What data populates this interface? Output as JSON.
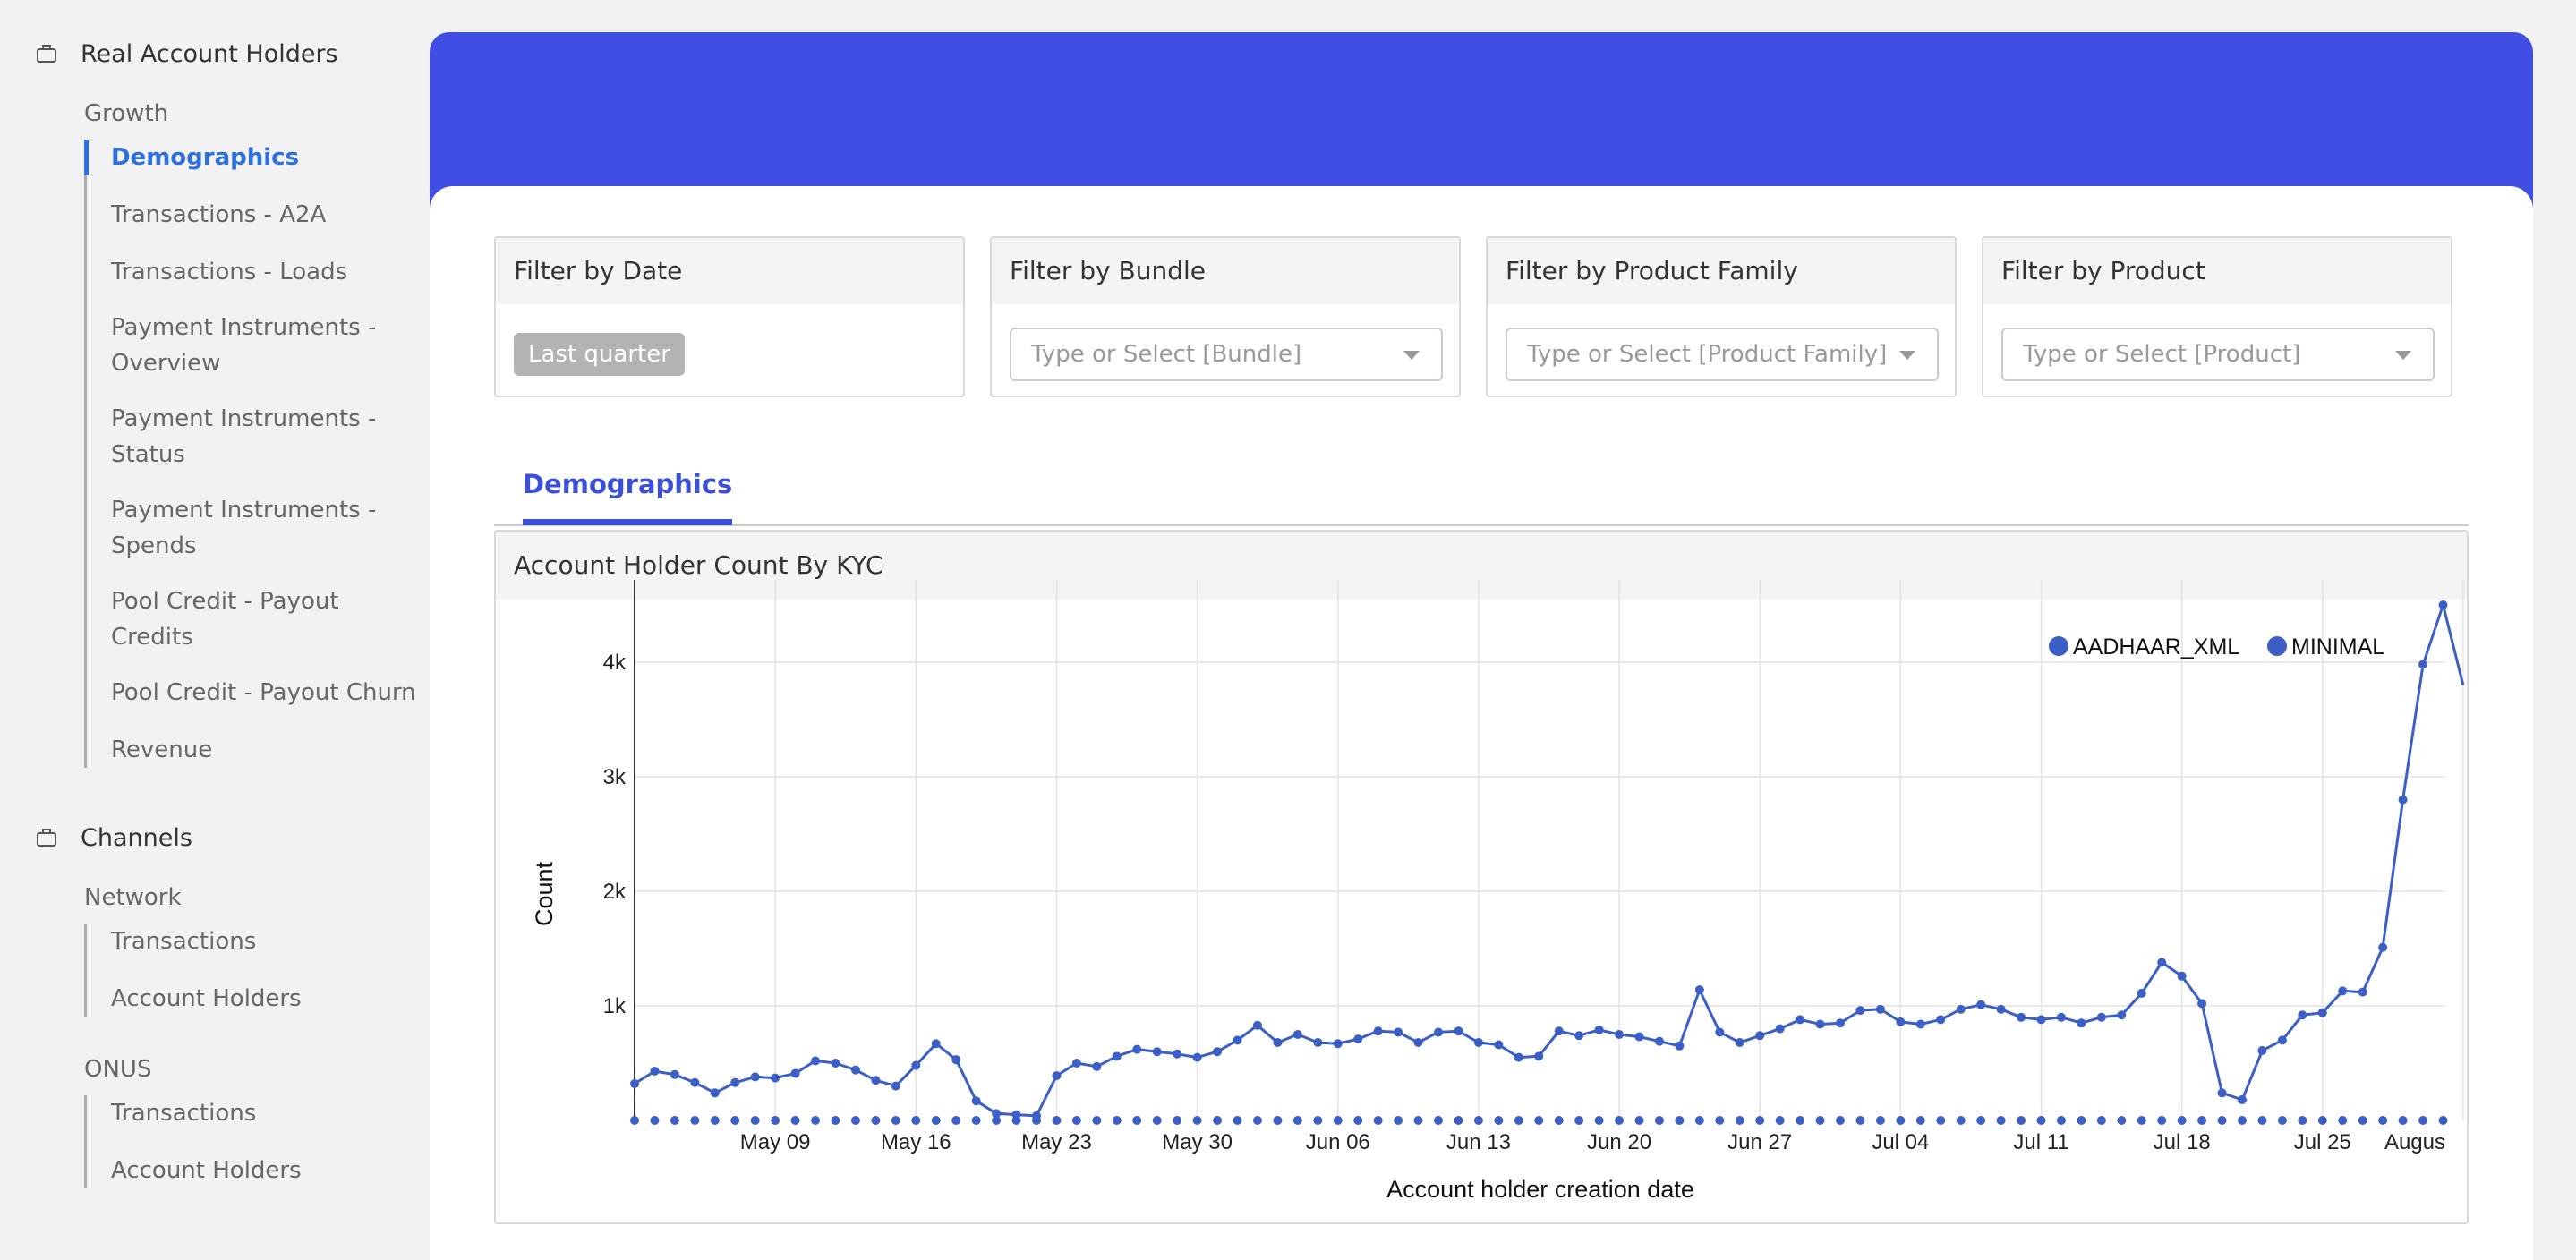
{
  "sidebar": {
    "section1": {
      "icon": "briefcase-icon",
      "title": "Real Account Holders",
      "subhead": "Growth",
      "items": [
        "Demographics",
        "Transactions - A2A",
        "Transactions - Loads",
        "Payment Instruments - Overview",
        "Payment Instruments - Status",
        "Payment Instruments - Spends",
        "Pool Credit - Payout Credits",
        "Pool Credit - Payout Churn",
        "Revenue"
      ],
      "active": "Demographics"
    },
    "section2": {
      "icon": "briefcase-icon",
      "title": "Channels",
      "groups": [
        {
          "subhead": "Network",
          "items": [
            "Transactions",
            "Account Holders"
          ]
        },
        {
          "subhead": "ONUS",
          "items": [
            "Transactions",
            "Account Holders"
          ]
        }
      ]
    }
  },
  "filters": {
    "date": {
      "title": "Filter by Date",
      "chip": "Last quarter"
    },
    "bundle": {
      "title": "Filter by Bundle",
      "placeholder": "Type or Select [Bundle]"
    },
    "family": {
      "title": "Filter by Product Family",
      "placeholder": "Type or Select [Product Family]"
    },
    "product": {
      "title": "Filter by Product",
      "placeholder": "Type or Select [Product]"
    }
  },
  "tabs": {
    "active": "Demographics"
  },
  "chart": {
    "title": "Account Holder Count By KYC"
  },
  "chart_data": {
    "type": "line",
    "xlabel": "Account holder creation date",
    "ylabel": "Count",
    "ylim": [
      0,
      4500
    ],
    "yticks": [
      1000,
      2000,
      3000,
      4000
    ],
    "ytick_labels": [
      "1k",
      "2k",
      "3k",
      "4k"
    ],
    "xtick_labels": [
      "May 09",
      "May 16",
      "May 23",
      "May 30",
      "Jun 06",
      "Jun 13",
      "Jun 20",
      "Jun 27",
      "Jul 04",
      "Jul 11",
      "Jul 18",
      "Jul 25",
      "Augus"
    ],
    "xtick_index": [
      7,
      14,
      21,
      28,
      35,
      42,
      49,
      56,
      63,
      70,
      77,
      84,
      91
    ],
    "color": "#3b5fc6",
    "legend_position": "top-right",
    "series": [
      {
        "name": "AADHAAR_XML",
        "values": [
          320,
          430,
          400,
          330,
          240,
          330,
          380,
          370,
          410,
          520,
          500,
          440,
          350,
          300,
          480,
          670,
          530,
          170,
          60,
          50,
          40,
          390,
          500,
          470,
          560,
          620,
          600,
          580,
          550,
          600,
          700,
          830,
          680,
          750,
          680,
          670,
          710,
          780,
          770,
          680,
          770,
          780,
          680,
          660,
          550,
          560,
          780,
          740,
          790,
          750,
          730,
          690,
          650,
          1140,
          770,
          680,
          740,
          800,
          880,
          840,
          850,
          960,
          970,
          860,
          840,
          880,
          970,
          1010,
          970,
          900,
          880,
          900,
          850,
          900,
          920,
          1110,
          1380,
          1260,
          1020,
          240,
          180,
          610,
          700,
          920,
          940,
          1130,
          1120,
          1510,
          2800,
          3980,
          4500,
          3800
        ]
      },
      {
        "name": "MINIMAL",
        "values": [
          0,
          0,
          0,
          0,
          0,
          0,
          0,
          0,
          0,
          0,
          0,
          0,
          0,
          0,
          0,
          0,
          0,
          0,
          0,
          0,
          0,
          0,
          0,
          0,
          0,
          0,
          0,
          0,
          0,
          0,
          0,
          0,
          0,
          0,
          0,
          0,
          0,
          0,
          0,
          0,
          0,
          0,
          0,
          0,
          0,
          0,
          0,
          0,
          0,
          0,
          0,
          0,
          0,
          0,
          0,
          0,
          0,
          0,
          0,
          0,
          0,
          0,
          0,
          0,
          0,
          0,
          0,
          0,
          0,
          0,
          0,
          0,
          0,
          0,
          0,
          0,
          0,
          0,
          0,
          0,
          0,
          0,
          0,
          0,
          0,
          0,
          0,
          0,
          0,
          0,
          0,
          0
        ]
      }
    ]
  }
}
